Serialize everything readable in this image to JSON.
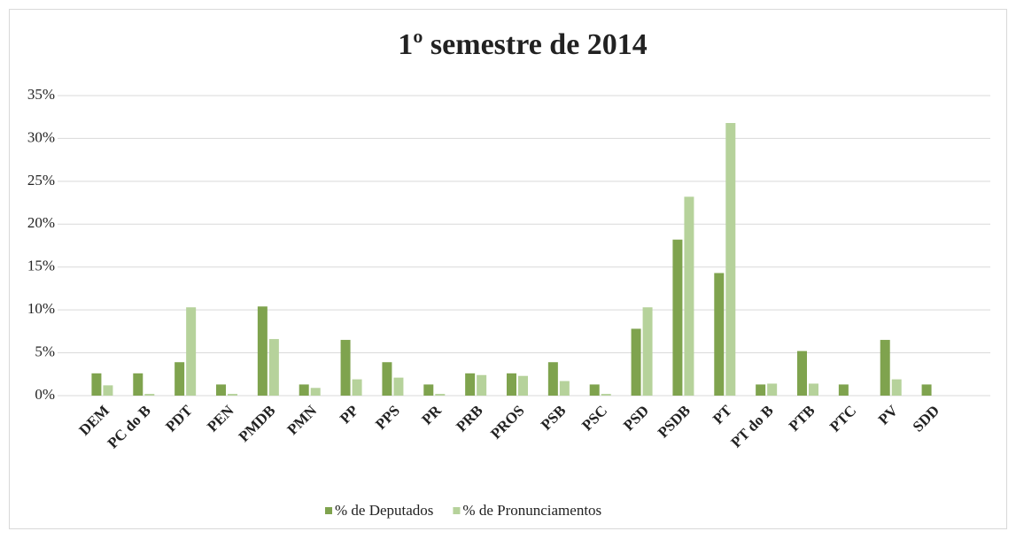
{
  "chart_data": {
    "type": "bar",
    "title": "1º semestre de 2014",
    "categories": [
      "DEM",
      "PC do B",
      "PDT",
      "PEN",
      "PMDB",
      "PMN",
      "PP",
      "PPS",
      "PR",
      "PRB",
      "PROS",
      "PSB",
      "PSC",
      "PSD",
      "PSDB",
      "PT",
      "PT do B",
      "PTB",
      "PTC",
      "PV",
      "SDD"
    ],
    "series": [
      {
        "name": "% de Deputados",
        "color": "#7fa34e",
        "values": [
          2.6,
          2.6,
          3.9,
          1.3,
          10.4,
          1.3,
          6.5,
          3.9,
          1.3,
          2.6,
          2.6,
          3.9,
          1.3,
          7.8,
          18.2,
          14.3,
          1.3,
          5.2,
          1.3,
          6.5,
          1.3
        ]
      },
      {
        "name": "% de Pronunciamentos",
        "color": "#b6d29b",
        "values": [
          1.2,
          0.2,
          10.3,
          0.2,
          6.6,
          0.9,
          1.9,
          2.1,
          0.2,
          2.4,
          2.3,
          1.7,
          0.2,
          10.3,
          23.2,
          31.8,
          1.4,
          1.4,
          0,
          1.9,
          0
        ]
      }
    ],
    "ylim": [
      0,
      35
    ],
    "yticks": [
      {
        "value": 0,
        "label": "0%"
      },
      {
        "value": 5,
        "label": "5%"
      },
      {
        "value": 10,
        "label": "10%"
      },
      {
        "value": 15,
        "label": "15%"
      },
      {
        "value": 20,
        "label": "20%"
      },
      {
        "value": 25,
        "label": "25%"
      },
      {
        "value": 30,
        "label": "30%"
      },
      {
        "value": 35,
        "label": "35%"
      }
    ],
    "grid": true,
    "legend": "bottom"
  }
}
